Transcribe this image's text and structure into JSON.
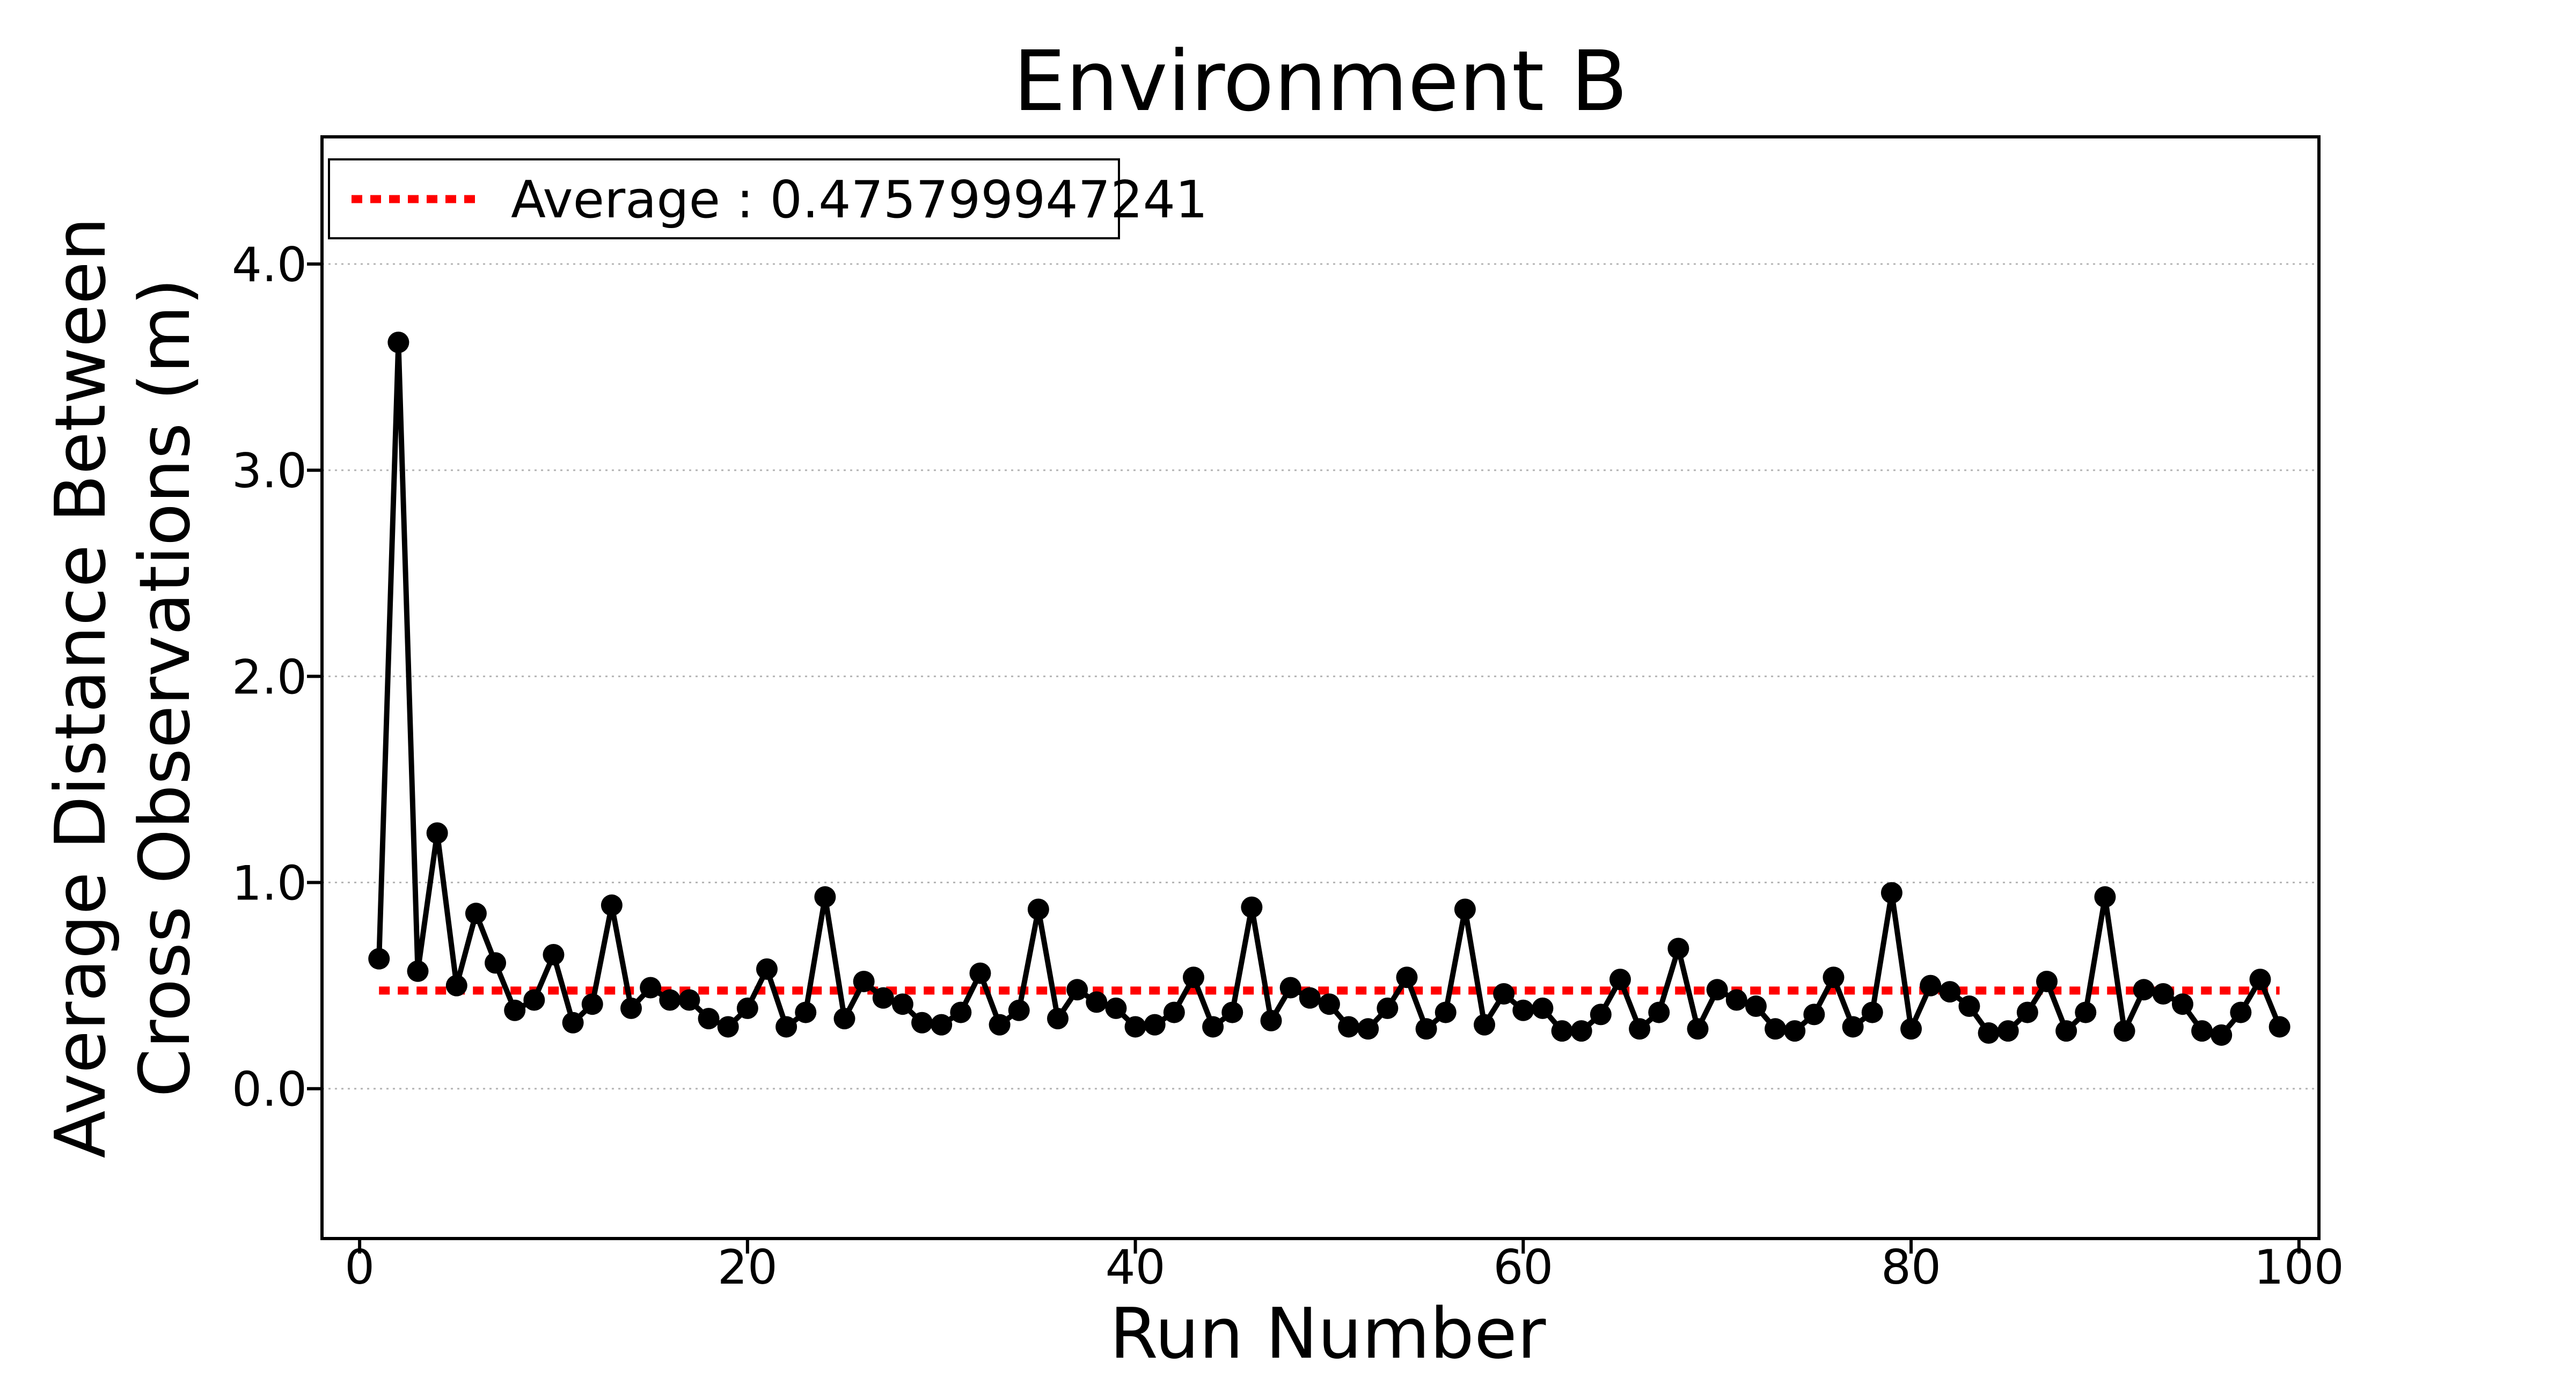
{
  "chart_data": {
    "type": "line",
    "title": "Environment B",
    "xlabel": "Run Number",
    "ylabel_line1": "Average Distance Between",
    "ylabel_line2": "Cross Observations (m)",
    "legend": {
      "label": "Average : 0.475799947241",
      "position": "upper left",
      "swatch": "red-dotted-line"
    },
    "average": 0.475799947241,
    "x": [
      1,
      2,
      3,
      4,
      5,
      6,
      7,
      8,
      9,
      10,
      11,
      12,
      13,
      14,
      15,
      16,
      17,
      18,
      19,
      20,
      21,
      22,
      23,
      24,
      25,
      26,
      27,
      28,
      29,
      30,
      31,
      32,
      33,
      34,
      35,
      36,
      37,
      38,
      39,
      40,
      41,
      42,
      43,
      44,
      45,
      46,
      47,
      48,
      49,
      50,
      51,
      52,
      53,
      54,
      55,
      56,
      57,
      58,
      59,
      60,
      61,
      62,
      63,
      64,
      65,
      66,
      67,
      68,
      69,
      70,
      71,
      72,
      73,
      74,
      75,
      76,
      77,
      78,
      79,
      80,
      81,
      82,
      83,
      84,
      85,
      86,
      87,
      88,
      89,
      90,
      91,
      92,
      93,
      94,
      95,
      96,
      97,
      98,
      99
    ],
    "y": [
      0.63,
      3.62,
      0.57,
      1.24,
      0.5,
      0.85,
      0.61,
      0.38,
      0.43,
      0.65,
      0.32,
      0.41,
      0.89,
      0.39,
      0.49,
      0.43,
      0.43,
      0.34,
      0.3,
      0.39,
      0.58,
      0.3,
      0.37,
      0.93,
      0.34,
      0.52,
      0.44,
      0.41,
      0.32,
      0.31,
      0.37,
      0.56,
      0.31,
      0.38,
      0.87,
      0.34,
      0.48,
      0.42,
      0.39,
      0.3,
      0.31,
      0.37,
      0.54,
      0.3,
      0.37,
      0.88,
      0.33,
      0.49,
      0.44,
      0.41,
      0.3,
      0.29,
      0.39,
      0.54,
      0.29,
      0.37,
      0.87,
      0.31,
      0.46,
      0.38,
      0.39,
      0.28,
      0.28,
      0.36,
      0.53,
      0.29,
      0.37,
      0.68,
      0.29,
      0.48,
      0.43,
      0.4,
      0.29,
      0.28,
      0.36,
      0.54,
      0.3,
      0.37,
      0.95,
      0.29,
      0.5,
      0.47,
      0.4,
      0.27,
      0.28,
      0.37,
      0.52,
      0.28,
      0.37,
      0.93,
      0.28,
      0.48,
      0.46,
      0.41,
      0.28,
      0.26,
      0.37,
      0.53,
      0.3
    ],
    "xticks": [
      0,
      20,
      40,
      60,
      80,
      100
    ],
    "xtick_labels": [
      "0",
      "20",
      "40",
      "60",
      "80",
      "100"
    ],
    "yticks": [
      0.0,
      1.0,
      2.0,
      3.0,
      4.0
    ],
    "ytick_labels": [
      "0.0",
      "1.0",
      "2.0",
      "3.0",
      "4.0"
    ],
    "xlim": [
      -1.94,
      101.03
    ],
    "ylim": [
      -0.727,
      4.617
    ],
    "grid": "horizontal-dotted",
    "colors": {
      "line": "#000000",
      "marker": "#000000",
      "average_line": "#ff0000",
      "grid": "#b5b5b5",
      "spine": "#000000",
      "background": "#ffffff"
    }
  }
}
